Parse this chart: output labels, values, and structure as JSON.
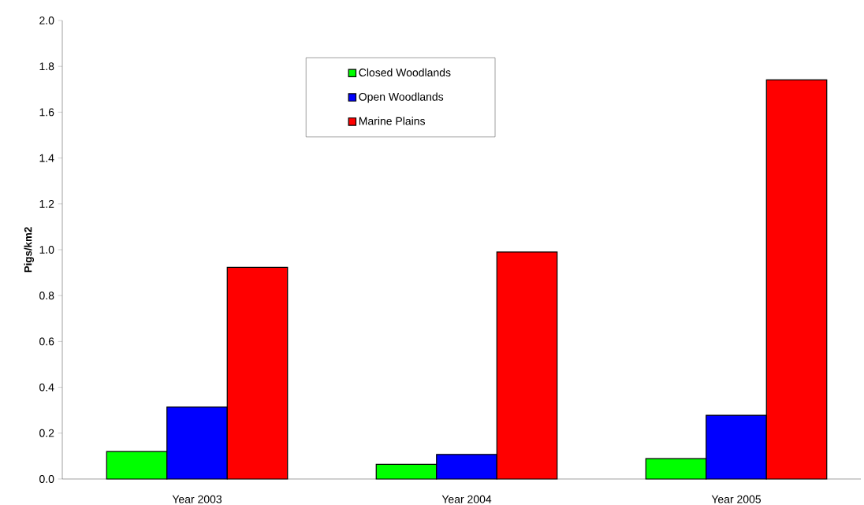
{
  "chart_data": {
    "type": "bar",
    "ylabel": "Pigs/km2",
    "categories": [
      "Year 2003",
      "Year 2004",
      "Year 2005"
    ],
    "series": [
      {
        "name": "Closed Woodlands",
        "color": "#00ff00",
        "values": [
          0.12,
          0.064,
          0.089
        ]
      },
      {
        "name": "Open Woodlands",
        "color": "#0000ff",
        "values": [
          0.314,
          0.107,
          0.278
        ]
      },
      {
        "name": "Marine Plains",
        "color": "#ff0000",
        "values": [
          0.923,
          0.99,
          1.741
        ]
      }
    ],
    "ylim": [
      0,
      2.0
    ],
    "yticks": [
      {
        "value": 0,
        "label": "0.0"
      },
      {
        "value": 0.2,
        "label": "0.2"
      },
      {
        "value": 0.4,
        "label": "0.4"
      },
      {
        "value": 0.6,
        "label": "0.6"
      },
      {
        "value": 0.8,
        "label": "0.8"
      },
      {
        "value": 1.0,
        "label": "1.0"
      },
      {
        "value": 1.2,
        "label": "1.2"
      },
      {
        "value": 1.4,
        "label": "1.4"
      },
      {
        "value": 1.6,
        "label": "1.6"
      },
      {
        "value": 1.8,
        "label": "1.8"
      },
      {
        "value": 2.0,
        "label": "2.0"
      }
    ],
    "grid": false,
    "legend": "top"
  }
}
